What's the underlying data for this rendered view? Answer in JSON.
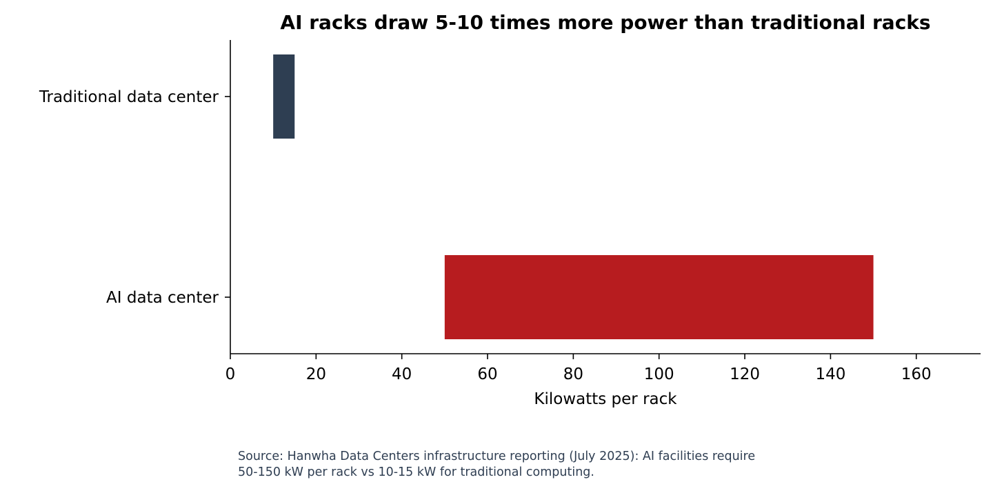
{
  "chart_data": {
    "type": "bar",
    "orientation": "horizontal",
    "title": "AI racks draw 5-10 times more power than traditional racks",
    "xlabel": "Kilowatts per rack",
    "ylabel": "",
    "xlim": [
      0,
      175
    ],
    "xticks": [
      0,
      20,
      40,
      60,
      80,
      100,
      120,
      140,
      160
    ],
    "grid": false,
    "categories": [
      "Traditional data center",
      "AI data center"
    ],
    "ranges": [
      {
        "category": "Traditional data center",
        "start": 10,
        "end": 15,
        "color": "#2e3e52"
      },
      {
        "category": "AI data center",
        "start": 50,
        "end": 150,
        "color": "#b71c1f"
      }
    ],
    "source_lines": [
      "Source: Hanwha Data Centers infrastructure reporting (July 2025): AI facilities require",
      "50-150 kW per rack vs 10-15 kW for traditional computing."
    ]
  }
}
